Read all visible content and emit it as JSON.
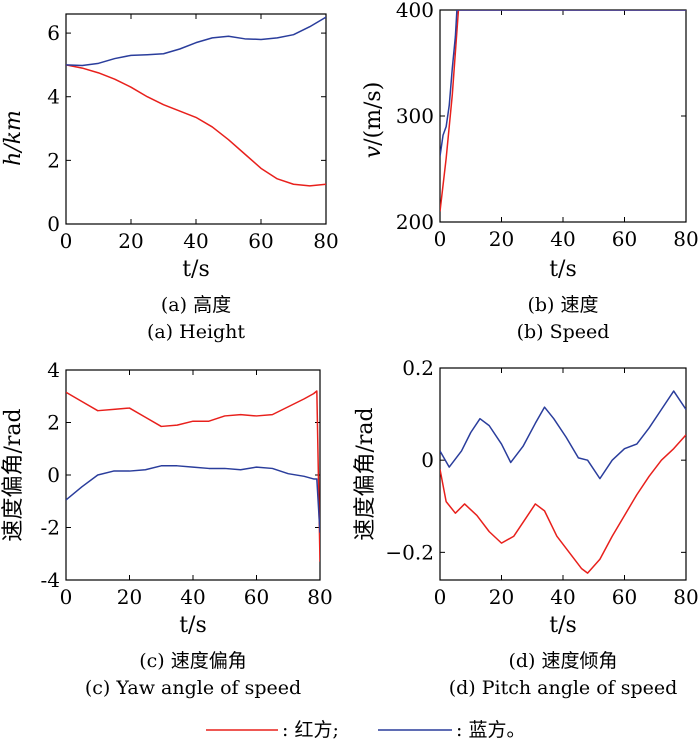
{
  "legend": {
    "red_label": ": 红方;",
    "blue_label": ": 蓝方。",
    "red_color": "#e8201c",
    "blue_color": "#2a3d9c"
  },
  "chart_data": [
    {
      "type": "line",
      "caption_cn": "(a) 高度",
      "caption_en": "(a) Height",
      "xlabel": "t/s",
      "ylabel": "h/km",
      "xlim": [
        0,
        80
      ],
      "ylim": [
        0,
        6.6
      ],
      "xticks": [
        0,
        20,
        40,
        60,
        80
      ],
      "yticks": [
        0,
        2,
        4,
        6
      ],
      "grid": false,
      "series": [
        {
          "color": "red",
          "points": [
            [
              0,
              5.0
            ],
            [
              5,
              4.9
            ],
            [
              10,
              4.75
            ],
            [
              15,
              4.55
            ],
            [
              20,
              4.3
            ],
            [
              25,
              4.0
            ],
            [
              30,
              3.75
            ],
            [
              35,
              3.55
            ],
            [
              40,
              3.35
            ],
            [
              45,
              3.05
            ],
            [
              50,
              2.65
            ],
            [
              55,
              2.2
            ],
            [
              60,
              1.75
            ],
            [
              65,
              1.42
            ],
            [
              70,
              1.25
            ],
            [
              75,
              1.2
            ],
            [
              80,
              1.25
            ]
          ]
        },
        {
          "color": "blue",
          "points": [
            [
              0,
              5.0
            ],
            [
              5,
              4.98
            ],
            [
              10,
              5.05
            ],
            [
              15,
              5.2
            ],
            [
              20,
              5.3
            ],
            [
              25,
              5.32
            ],
            [
              30,
              5.35
            ],
            [
              35,
              5.5
            ],
            [
              40,
              5.7
            ],
            [
              45,
              5.85
            ],
            [
              50,
              5.9
            ],
            [
              55,
              5.82
            ],
            [
              60,
              5.8
            ],
            [
              65,
              5.85
            ],
            [
              70,
              5.95
            ],
            [
              75,
              6.2
            ],
            [
              80,
              6.5
            ]
          ]
        }
      ]
    },
    {
      "type": "line",
      "caption_cn": "(b) 速度",
      "caption_en": "(b) Speed",
      "xlabel": "t/s",
      "ylabel": "v/(m/s)",
      "xlim": [
        0,
        80
      ],
      "ylim": [
        200,
        400
      ],
      "xticks": [
        0,
        20,
        40,
        60,
        80
      ],
      "yticks": [
        200,
        300,
        400
      ],
      "grid": false,
      "series": [
        {
          "color": "red",
          "points": [
            [
              0,
              210
            ],
            [
              2,
              260
            ],
            [
              4,
              320
            ],
            [
              6,
              400
            ],
            [
              80,
              400
            ]
          ]
        },
        {
          "color": "blue",
          "points": [
            [
              0,
              262
            ],
            [
              1,
              282
            ],
            [
              2,
              290
            ],
            [
              3,
              310
            ],
            [
              4,
              345
            ],
            [
              5,
              375
            ],
            [
              5.5,
              400
            ],
            [
              80,
              400
            ]
          ]
        }
      ]
    },
    {
      "type": "line",
      "caption_cn": "(c) 速度偏角",
      "caption_en": "(c) Yaw angle of speed",
      "xlabel": "t/s",
      "ylabel": "速度偏角/rad",
      "xlim": [
        0,
        80
      ],
      "ylim": [
        -4,
        4
      ],
      "xticks": [
        0,
        20,
        40,
        60,
        80
      ],
      "yticks": [
        -4,
        -2,
        0,
        2,
        4
      ],
      "grid": false,
      "series": [
        {
          "color": "red",
          "points": [
            [
              0,
              3.15
            ],
            [
              5,
              2.8
            ],
            [
              10,
              2.45
            ],
            [
              15,
              2.5
            ],
            [
              20,
              2.55
            ],
            [
              25,
              2.2
            ],
            [
              30,
              1.85
            ],
            [
              35,
              1.9
            ],
            [
              40,
              2.05
            ],
            [
              45,
              2.05
            ],
            [
              50,
              2.25
            ],
            [
              55,
              2.3
            ],
            [
              60,
              2.25
            ],
            [
              65,
              2.3
            ],
            [
              70,
              2.6
            ],
            [
              75,
              2.9
            ],
            [
              78,
              3.1
            ],
            [
              79,
              3.2
            ],
            [
              80,
              -3.3
            ]
          ]
        },
        {
          "color": "blue",
          "points": [
            [
              0,
              -0.95
            ],
            [
              5,
              -0.45
            ],
            [
              10,
              0.0
            ],
            [
              15,
              0.15
            ],
            [
              20,
              0.15
            ],
            [
              25,
              0.2
            ],
            [
              30,
              0.35
            ],
            [
              35,
              0.35
            ],
            [
              40,
              0.3
            ],
            [
              45,
              0.25
            ],
            [
              50,
              0.25
            ],
            [
              55,
              0.2
            ],
            [
              60,
              0.3
            ],
            [
              65,
              0.25
            ],
            [
              70,
              0.05
            ],
            [
              75,
              -0.05
            ],
            [
              78,
              -0.15
            ],
            [
              79,
              -0.15
            ],
            [
              80,
              -2.2
            ]
          ]
        }
      ]
    },
    {
      "type": "line",
      "caption_cn": "(d) 速度倾角",
      "caption_en": "(d) Pitch angle of speed",
      "xlabel": "t/s",
      "ylabel": "速度偏角/rad",
      "xlim": [
        0,
        80
      ],
      "ylim": [
        -0.26,
        0.2
      ],
      "xticks": [
        0,
        20,
        40,
        60,
        80
      ],
      "yticks": [
        -0.2,
        0,
        0.2
      ],
      "ytick_labels": [
        "−0.2",
        "0",
        "0.2"
      ],
      "grid": false,
      "series": [
        {
          "color": "red",
          "points": [
            [
              0,
              -0.02
            ],
            [
              2,
              -0.09
            ],
            [
              5,
              -0.115
            ],
            [
              8,
              -0.095
            ],
            [
              12,
              -0.12
            ],
            [
              16,
              -0.155
            ],
            [
              20,
              -0.18
            ],
            [
              24,
              -0.165
            ],
            [
              28,
              -0.125
            ],
            [
              31,
              -0.095
            ],
            [
              34,
              -0.11
            ],
            [
              38,
              -0.165
            ],
            [
              42,
              -0.2
            ],
            [
              46,
              -0.235
            ],
            [
              48,
              -0.245
            ],
            [
              52,
              -0.215
            ],
            [
              56,
              -0.165
            ],
            [
              60,
              -0.12
            ],
            [
              64,
              -0.075
            ],
            [
              68,
              -0.035
            ],
            [
              72,
              0.0
            ],
            [
              76,
              0.025
            ],
            [
              80,
              0.055
            ]
          ]
        },
        {
          "color": "blue",
          "points": [
            [
              0,
              0.02
            ],
            [
              3,
              -0.015
            ],
            [
              7,
              0.02
            ],
            [
              10,
              0.06
            ],
            [
              13,
              0.09
            ],
            [
              16,
              0.075
            ],
            [
              20,
              0.035
            ],
            [
              23,
              -0.005
            ],
            [
              27,
              0.03
            ],
            [
              31,
              0.08
            ],
            [
              34,
              0.115
            ],
            [
              37,
              0.09
            ],
            [
              41,
              0.05
            ],
            [
              45,
              0.005
            ],
            [
              48,
              0.0
            ],
            [
              52,
              -0.04
            ],
            [
              56,
              0.0
            ],
            [
              60,
              0.025
            ],
            [
              64,
              0.035
            ],
            [
              68,
              0.07
            ],
            [
              72,
              0.11
            ],
            [
              76,
              0.15
            ],
            [
              80,
              0.11
            ]
          ]
        }
      ]
    }
  ]
}
